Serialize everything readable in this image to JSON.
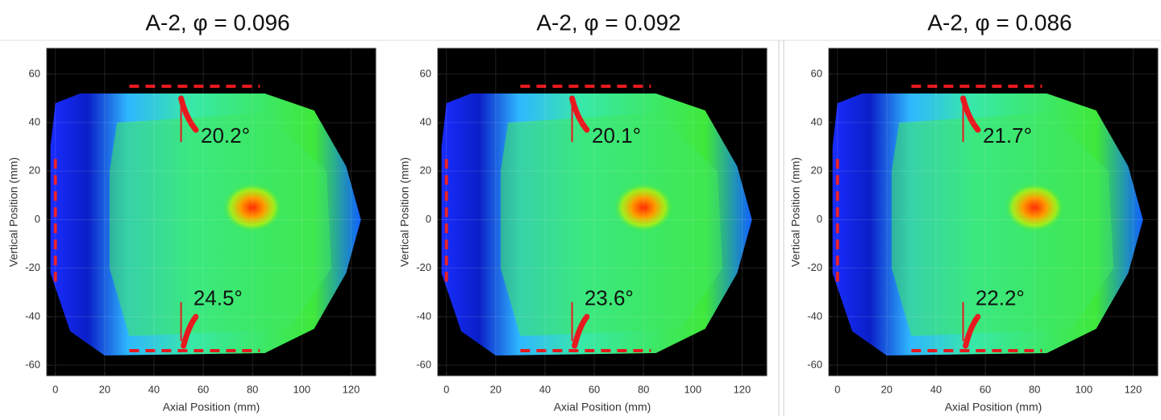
{
  "chart_data": [
    {
      "type": "heatmap",
      "title": "A-2, φ = 0.096",
      "x_label": "Axial Position (mm)",
      "y_label": "Vertical Position (mm)",
      "xlim": [
        -3.5,
        130
      ],
      "ylim": [
        -64.3,
        70.6
      ],
      "xticks": [
        0,
        20,
        40,
        60,
        80,
        100,
        120
      ],
      "yticks": [
        -60,
        -40,
        -20,
        0,
        20,
        40,
        60
      ],
      "grid": true,
      "annotations": [
        "20.2°",
        "24.5°"
      ]
    },
    {
      "type": "heatmap",
      "title": "A-2, φ = 0.092",
      "x_label": "Axial Position (mm)",
      "y_label": "Vertical Position (mm)",
      "xlim": [
        -3.5,
        130
      ],
      "ylim": [
        -64.3,
        70.6
      ],
      "xticks": [
        0,
        20,
        40,
        60,
        80,
        100,
        120
      ],
      "yticks": [
        -60,
        -40,
        -20,
        0,
        20,
        40,
        60
      ],
      "grid": true,
      "annotations": [
        "20.1°",
        "23.6°"
      ]
    },
    {
      "type": "heatmap",
      "title": "A-2, φ = 0.086",
      "x_label": "Axial Position (mm)",
      "y_label": "Vertical Position (mm)",
      "xlim": [
        -3.5,
        130
      ],
      "ylim": [
        -64.3,
        70.6
      ],
      "xticks": [
        0,
        20,
        40,
        60,
        80,
        100,
        120
      ],
      "yticks": [
        -60,
        -40,
        -20,
        0,
        20,
        40,
        60
      ],
      "grid": true,
      "annotations": [
        "21.7°",
        "22.2°"
      ]
    }
  ]
}
